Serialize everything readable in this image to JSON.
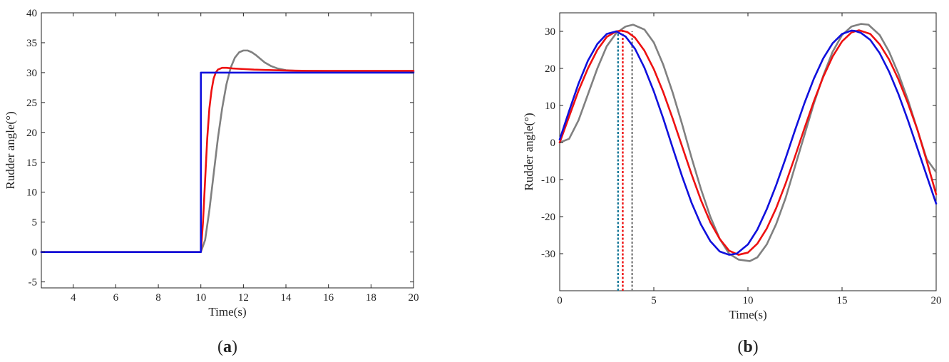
{
  "chart_data": [
    {
      "type": "line",
      "panel_label": "(a)",
      "panel_letter": "a",
      "xlabel": "Time(s)",
      "ylabel": "Rudder angle(°)",
      "xlim": [
        2.5,
        20
      ],
      "ylim": [
        -6,
        40
      ],
      "xticks": [
        4,
        6,
        8,
        10,
        12,
        14,
        16,
        18,
        20
      ],
      "yticks": [
        -5,
        0,
        5,
        10,
        15,
        20,
        25,
        30,
        35,
        40
      ],
      "grid": false,
      "legend": null,
      "colors": {
        "gray": "#808080",
        "red": "#ee1111",
        "blue": "#1010dd"
      },
      "series": [
        {
          "color": "#808080",
          "x": [
            2.5,
            10.0,
            10.2,
            10.4,
            10.6,
            10.8,
            11.0,
            11.2,
            11.4,
            11.6,
            11.8,
            12.0,
            12.2,
            12.4,
            12.6,
            12.8,
            13.0,
            13.3,
            13.6,
            14.0,
            14.5,
            15.0,
            16.0,
            18.0,
            20.0
          ],
          "y": [
            0,
            0,
            2.0,
            7.0,
            13.0,
            19.0,
            24.0,
            28.0,
            30.8,
            32.5,
            33.4,
            33.7,
            33.7,
            33.4,
            32.9,
            32.3,
            31.7,
            31.1,
            30.7,
            30.4,
            30.3,
            30.3,
            30.25,
            30.2,
            30.2
          ]
        },
        {
          "color": "#ee1111",
          "x": [
            2.5,
            10.0,
            10.1,
            10.2,
            10.3,
            10.4,
            10.5,
            10.6,
            10.7,
            10.8,
            11.0,
            11.2,
            11.5,
            12.0,
            12.5,
            13.0,
            14.0,
            15.0,
            16.0,
            18.0,
            20.0
          ],
          "y": [
            0,
            0,
            5.0,
            12.0,
            19.0,
            24.0,
            27.0,
            29.0,
            30.0,
            30.5,
            30.8,
            30.8,
            30.7,
            30.6,
            30.5,
            30.45,
            30.35,
            30.3,
            30.3,
            30.3,
            30.3
          ]
        },
        {
          "color": "#1010dd",
          "x": [
            2.5,
            10.0,
            10.0,
            20.0
          ],
          "y": [
            0,
            0,
            30,
            30
          ]
        }
      ]
    },
    {
      "type": "line",
      "panel_label": "(b)",
      "panel_letter": "b",
      "xlabel": "Time(s)",
      "ylabel": "Rudder angle(°)",
      "xlim": [
        0,
        20
      ],
      "ylim": [
        -40,
        35
      ],
      "xticks": [
        0,
        5,
        10,
        15,
        20
      ],
      "yticks": [
        -30,
        -20,
        -10,
        0,
        10,
        20,
        30
      ],
      "grid": false,
      "legend": null,
      "colors": {
        "gray": "#808080",
        "red": "#ee1111",
        "blue": "#1010dd"
      },
      "series": [
        {
          "color": "#808080",
          "x": [
            0,
            0.5,
            1.0,
            1.5,
            2.0,
            2.5,
            3.0,
            3.5,
            3.9,
            4.5,
            5.0,
            5.5,
            6.0,
            6.5,
            7.0,
            7.5,
            8.0,
            8.5,
            9.0,
            9.5,
            10.1,
            10.5,
            11.0,
            11.5,
            12.0,
            12.5,
            13.0,
            13.5,
            14.0,
            14.5,
            15.0,
            15.5,
            16.0,
            16.4,
            17.0,
            17.5,
            18.0,
            18.5,
            19.0,
            19.5,
            20.0
          ],
          "y": [
            0,
            1,
            6,
            13,
            20,
            26,
            29.5,
            31.3,
            31.8,
            30.5,
            27,
            21,
            13.5,
            5,
            -4,
            -12.5,
            -20,
            -26,
            -30,
            -31.6,
            -32,
            -31,
            -27.5,
            -22,
            -15,
            -6.5,
            2,
            10.5,
            18,
            24.5,
            29,
            31.3,
            32,
            31.8,
            29,
            24.5,
            18.5,
            11.5,
            3.5,
            -4.5,
            -8
          ]
        },
        {
          "color": "#ee1111",
          "x": [
            0,
            0.5,
            1.0,
            1.5,
            2.0,
            2.5,
            3.0,
            3.3,
            3.6,
            4.0,
            4.5,
            5.0,
            5.5,
            6.0,
            6.5,
            7.0,
            7.5,
            8.0,
            8.5,
            9.0,
            9.5,
            10.0,
            10.5,
            11.0,
            11.5,
            12.0,
            12.5,
            13.0,
            13.5,
            14.0,
            14.5,
            15.0,
            15.5,
            15.9,
            16.5,
            17.0,
            17.5,
            18.0,
            18.5,
            19.0,
            19.5,
            20.0
          ],
          "y": [
            0,
            7,
            14,
            20,
            25,
            28.5,
            30,
            30.2,
            29.8,
            28.3,
            24.8,
            19.8,
            13.6,
            6.5,
            -1,
            -8.5,
            -15.5,
            -21.5,
            -26,
            -29.2,
            -30.3,
            -29.7,
            -27.3,
            -23.2,
            -17.7,
            -11.1,
            -3.8,
            3.8,
            11.1,
            17.7,
            23.2,
            27.3,
            29.7,
            30.3,
            29.3,
            26.5,
            22.4,
            17,
            10.6,
            3.5,
            -5,
            -14
          ]
        },
        {
          "color": "#1010dd",
          "x": [
            0,
            0.5,
            1.0,
            1.5,
            2.0,
            2.5,
            3.0,
            3.5,
            4.0,
            4.5,
            5.0,
            5.5,
            6.0,
            6.5,
            7.0,
            7.5,
            8.0,
            8.5,
            9.0,
            9.4,
            10.0,
            10.5,
            11.0,
            11.5,
            12.0,
            12.5,
            13.0,
            13.5,
            14.0,
            14.5,
            15.0,
            15.5,
            15.7,
            16.0,
            16.5,
            17.0,
            17.5,
            18.0,
            18.5,
            19.0,
            19.5,
            20.0
          ],
          "y": [
            0.8,
            8.5,
            15.9,
            22.1,
            26.6,
            29.3,
            30,
            28.6,
            25.3,
            20.2,
            13.8,
            6.5,
            -1.4,
            -9.1,
            -16.2,
            -22.1,
            -26.6,
            -29.4,
            -30.3,
            -30,
            -27.5,
            -23.5,
            -18,
            -11.5,
            -4.3,
            3.3,
            10.6,
            17.2,
            22.7,
            26.8,
            29.3,
            30.2,
            30.1,
            29.6,
            27.7,
            24.1,
            19.1,
            13,
            6,
            -1.5,
            -9,
            -16.5
          ]
        }
      ],
      "markers": [
        {
          "x": 3.1,
          "color": "#1a7a9a"
        },
        {
          "x": 3.35,
          "color": "#ee1111"
        },
        {
          "x": 3.85,
          "color": "#808080"
        }
      ]
    }
  ]
}
